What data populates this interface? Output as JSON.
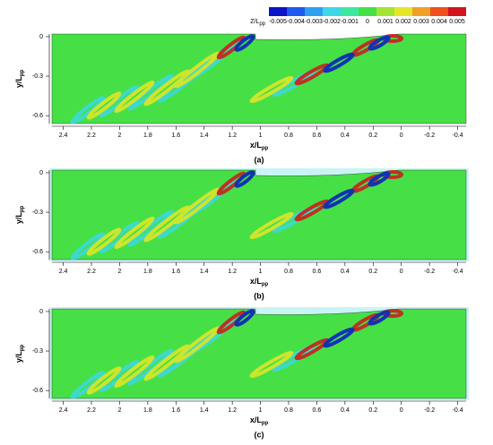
{
  "chart_data": [
    {
      "type": "contour",
      "caption": "(a)",
      "x_label": "x/L",
      "x_label_sub": "pp",
      "y_label": "y/L",
      "y_label_sub": "pp",
      "xlim": [
        2.48,
        -0.46
      ],
      "xticks": [
        2.4,
        2.2,
        2,
        1.8,
        1.6,
        1.4,
        1.2,
        1,
        0.8,
        0.6,
        0.4,
        0.2,
        0,
        -0.2,
        -0.4
      ],
      "ylim": [
        -0.66,
        0.02
      ],
      "yticks": [
        0,
        -0.3,
        -0.6
      ],
      "colorbar": {
        "label": "Z/L",
        "label_sub": "pp",
        "ticks": [
          -0.005,
          -0.004,
          -0.003,
          -0.002,
          -0.001,
          0,
          0.001,
          0.002,
          0.003,
          0.004,
          0.005
        ],
        "colors": [
          "#0a14c8",
          "#1e5af0",
          "#2fa0f0",
          "#3cd8e8",
          "#3ce8a0",
          "#46e046",
          "#a0e632",
          "#e6e628",
          "#f0a028",
          "#f05020",
          "#d2141e"
        ]
      }
    },
    {
      "type": "contour",
      "caption": "(b)",
      "x_label": "x/L",
      "x_label_sub": "pp",
      "y_label": "y/L",
      "y_label_sub": "pp",
      "xlim": [
        2.48,
        -0.46
      ],
      "xticks": [
        2.4,
        2.2,
        2,
        1.8,
        1.6,
        1.4,
        1.2,
        1,
        0.8,
        0.6,
        0.4,
        0.2,
        0,
        -0.2,
        -0.4
      ],
      "ylim": [
        -0.66,
        0.02
      ],
      "yticks": [
        0,
        -0.3,
        -0.6
      ]
    },
    {
      "type": "contour",
      "caption": "(c)",
      "x_label": "x/L",
      "x_label_sub": "pp",
      "y_label": "y/L",
      "y_label_sub": "pp",
      "xlim": [
        2.48,
        -0.46
      ],
      "xticks": [
        2.4,
        2.2,
        2,
        1.8,
        1.6,
        1.4,
        1.2,
        1,
        0.8,
        0.6,
        0.4,
        0.2,
        0,
        -0.2,
        -0.4
      ],
      "ylim": [
        -0.66,
        0.02
      ],
      "yticks": [
        0,
        -0.3,
        -0.6
      ]
    }
  ]
}
